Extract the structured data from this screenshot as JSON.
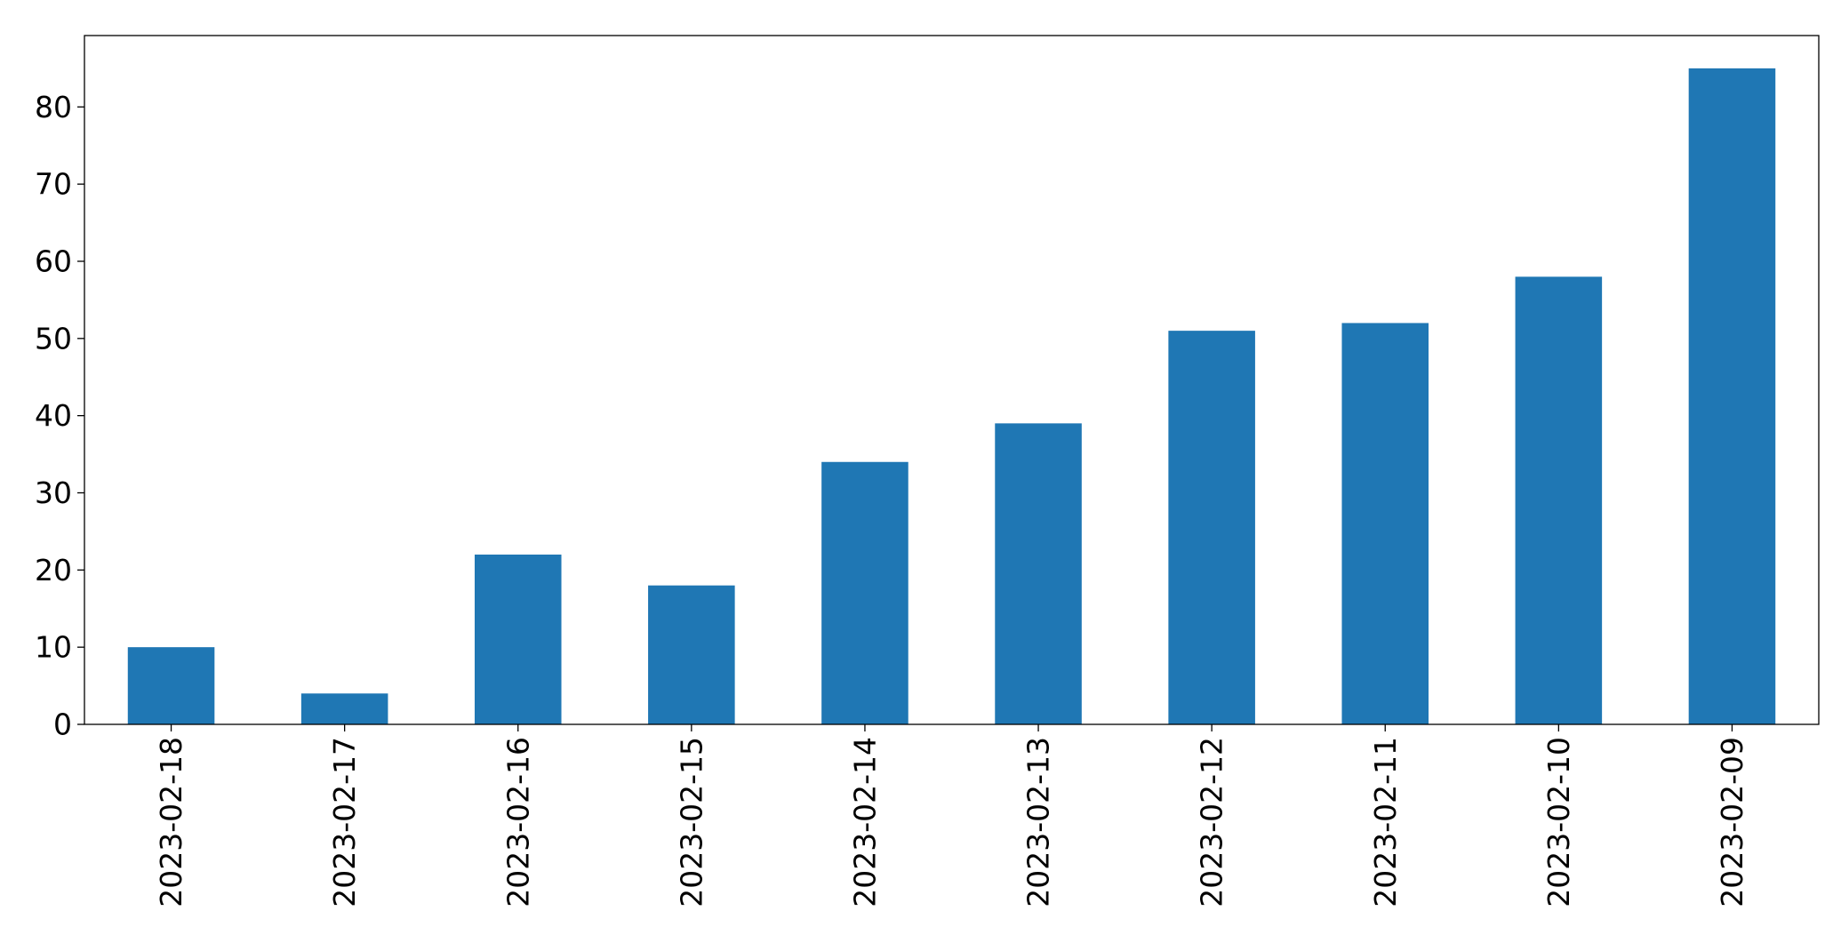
{
  "chart_data": {
    "type": "bar",
    "title": "",
    "xlabel": "",
    "ylabel": "",
    "categories": [
      "2023-02-18",
      "2023-02-17",
      "2023-02-16",
      "2023-02-15",
      "2023-02-14",
      "2023-02-13",
      "2023-02-12",
      "2023-02-11",
      "2023-02-10",
      "2023-02-09"
    ],
    "values": [
      10,
      4,
      22,
      18,
      34,
      39,
      51,
      52,
      58,
      85
    ],
    "ylim": [
      0,
      89.25
    ],
    "yticks": [
      0,
      10,
      20,
      30,
      40,
      50,
      60,
      70,
      80
    ],
    "grid": false,
    "legend": "none",
    "bar_color": "#1f77b4",
    "axis_color": "#000000"
  }
}
